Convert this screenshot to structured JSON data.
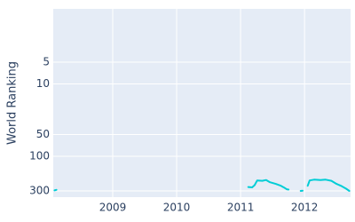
{
  "chart_data": {
    "type": "line",
    "y_label": "World Ranking",
    "x": [
      2008.09,
      2008.12,
      null,
      2011.12,
      2011.18,
      2011.22,
      2011.26,
      2011.34,
      2011.4,
      2011.46,
      2011.55,
      2011.63,
      2011.68,
      2011.72,
      2011.75,
      null,
      2011.94,
      2011.97,
      null,
      2012.05,
      2012.08,
      2012.15,
      2012.25,
      2012.33,
      2012.42,
      2012.5,
      2012.58,
      2012.65,
      2012.7
    ],
    "series": [
      {
        "name": "World Ranking",
        "color": "#00cdd6",
        "values": [
          295,
          290,
          null,
          265,
          268,
          250,
          215,
          218,
          212,
          228,
          240,
          255,
          270,
          285,
          288,
          null,
          300,
          298,
          null,
          255,
          215,
          210,
          212,
          210,
          218,
          240,
          258,
          280,
          300
        ]
      }
    ],
    "xlim": [
      2008.07,
      2012.72
    ],
    "xticks": [
      2009,
      2010,
      2011,
      2012
    ],
    "ylim": [
      0.92,
      366
    ],
    "yticks": [
      5,
      10,
      50,
      100,
      300
    ],
    "log_y": true,
    "y_inverted": true,
    "grid": true
  }
}
